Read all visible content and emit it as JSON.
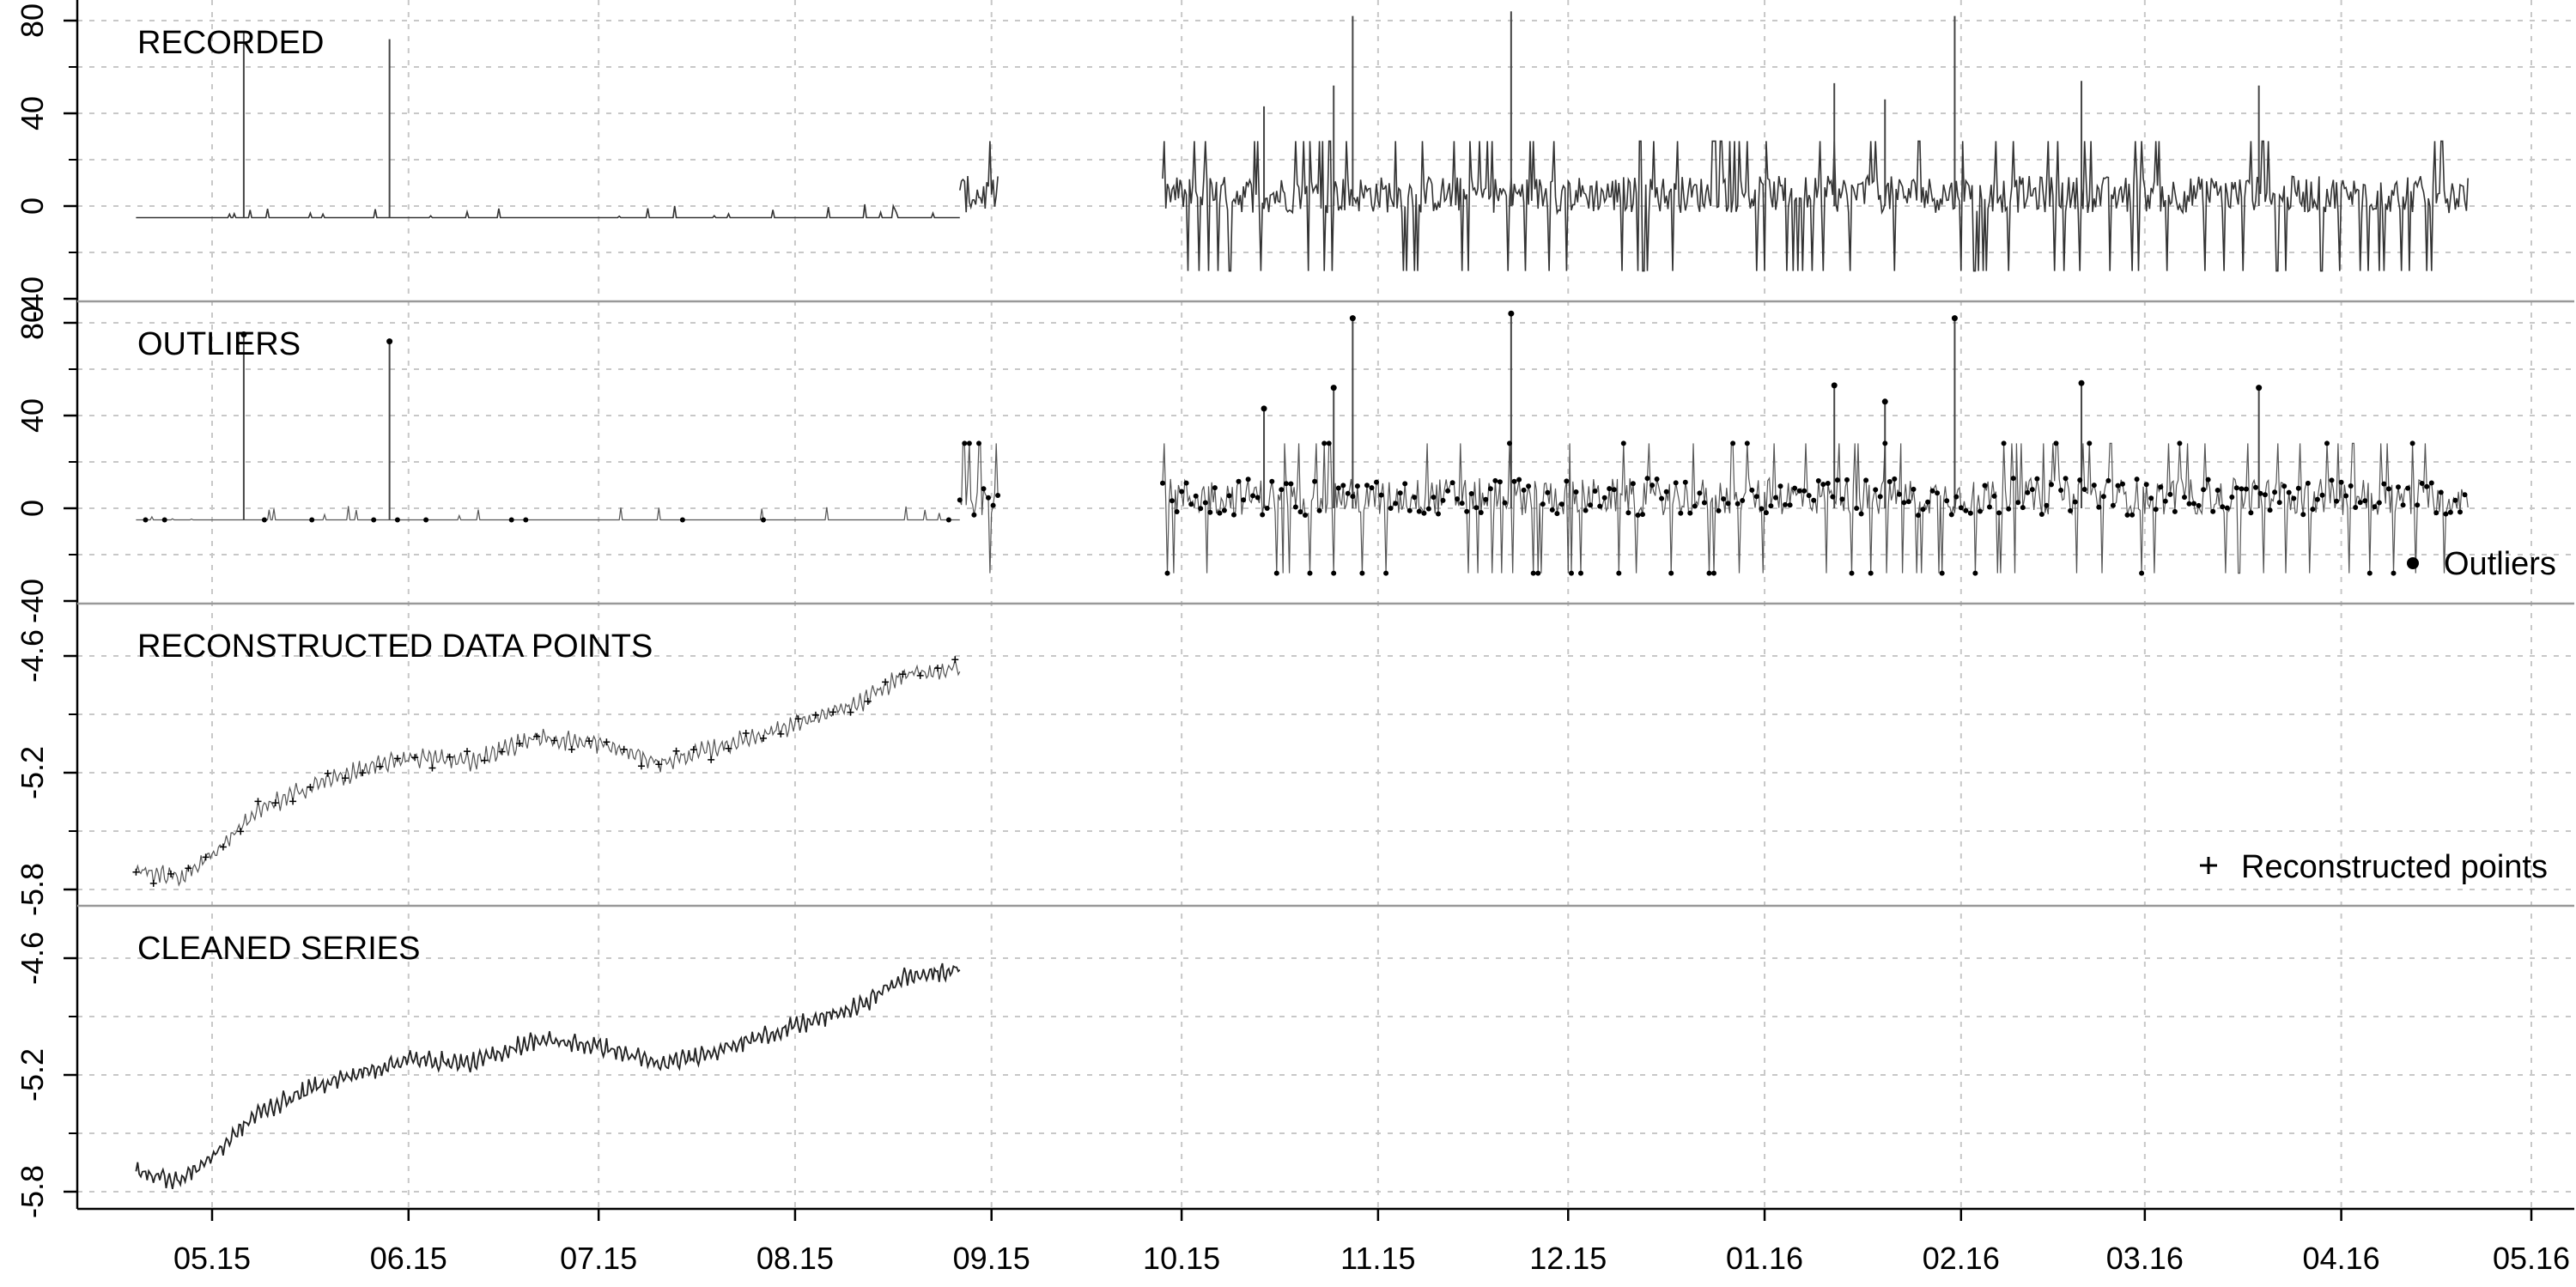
{
  "chart_data": {
    "type": "line",
    "grid": true,
    "panels": [
      {
        "title": "RECORDED",
        "yticks": [
          "80",
          "40",
          "0",
          "-40"
        ],
        "ylim": [
          -40,
          80
        ],
        "series_style": "line",
        "segments": [
          {
            "x": [
              "2015-05-03",
              "2015-09-10"
            ],
            "baseline": -5,
            "spikes": [
              {
                "x": "2015-05-20",
                "y": 75
              },
              {
                "x": "2015-06-12",
                "y": 72
              }
            ]
          },
          {
            "x": [
              "2015-09-10",
              "2015-09-16"
            ],
            "range": [
              -28,
              28
            ]
          },
          {
            "x": [
              "2015-10-12",
              "2016-05-05"
            ],
            "range": [
              -28,
              28
            ],
            "spikes": [
              {
                "x": "2015-10-28",
                "y": 43
              },
              {
                "x": "2015-11-08",
                "y": 52
              },
              {
                "x": "2015-11-11",
                "y": 82
              },
              {
                "x": "2015-12-06",
                "y": 84
              },
              {
                "x": "2016-01-26",
                "y": 53
              },
              {
                "x": "2016-02-03",
                "y": 46
              },
              {
                "x": "2016-02-14",
                "y": 82
              },
              {
                "x": "2016-03-05",
                "y": 54
              },
              {
                "x": "2016-04-02",
                "y": 52
              }
            ]
          }
        ]
      },
      {
        "title": "OUTLIERS",
        "yticks": [
          "80",
          "40",
          "0",
          "-40"
        ],
        "ylim": [
          -40,
          80
        ],
        "series_style": "line+points",
        "legend": {
          "label": "Outliers",
          "symbol": "filled-circle",
          "position": "bottom-right"
        },
        "segments": [
          {
            "x": [
              "2015-05-03",
              "2015-09-10"
            ],
            "baseline": -5,
            "spikes": [
              {
                "x": "2015-05-20",
                "y": 75
              },
              {
                "x": "2015-06-12",
                "y": 72
              }
            ]
          },
          {
            "x": [
              "2015-09-10",
              "2015-09-16"
            ],
            "range": [
              -28,
              28
            ]
          },
          {
            "x": [
              "2015-10-12",
              "2016-05-05"
            ],
            "range": [
              -28,
              28
            ],
            "spikes": [
              {
                "x": "2015-10-28",
                "y": 43
              },
              {
                "x": "2015-11-08",
                "y": 52
              },
              {
                "x": "2015-11-11",
                "y": 82
              },
              {
                "x": "2015-12-06",
                "y": 84
              },
              {
                "x": "2016-01-26",
                "y": 53
              },
              {
                "x": "2016-02-03",
                "y": 46
              },
              {
                "x": "2016-02-14",
                "y": 82
              },
              {
                "x": "2016-03-05",
                "y": 54
              },
              {
                "x": "2016-04-02",
                "y": 52
              }
            ]
          }
        ]
      },
      {
        "title": "RECONSTRUCTED DATA POINTS",
        "yticks": [
          "-4.6",
          "-5.2",
          "-5.8"
        ],
        "ylim": [
          -5.8,
          -4.55
        ],
        "series_style": "line+plus",
        "legend": {
          "label": "Reconstructed points",
          "symbol": "plus",
          "position": "bottom-right"
        },
        "trend": [
          {
            "x": "2015-05-03",
            "y": -5.7
          },
          {
            "x": "2015-05-10",
            "y": -5.74
          },
          {
            "x": "2015-05-15",
            "y": -5.62
          },
          {
            "x": "2015-05-22",
            "y": -5.4
          },
          {
            "x": "2015-06-01",
            "y": -5.25
          },
          {
            "x": "2015-06-15",
            "y": -5.12
          },
          {
            "x": "2015-06-25",
            "y": -5.14
          },
          {
            "x": "2015-07-05",
            "y": -5.02
          },
          {
            "x": "2015-07-15",
            "y": -5.05
          },
          {
            "x": "2015-07-25",
            "y": -5.15
          },
          {
            "x": "2015-08-05",
            "y": -5.05
          },
          {
            "x": "2015-08-15",
            "y": -4.95
          },
          {
            "x": "2015-08-25",
            "y": -4.85
          },
          {
            "x": "2015-09-01",
            "y": -4.7
          },
          {
            "x": "2015-09-10",
            "y": -4.66
          }
        ]
      },
      {
        "title": "CLEANED SERIES",
        "yticks": [
          "-4.6",
          "-5.2",
          "-5.8"
        ],
        "ylim": [
          -5.8,
          -4.55
        ],
        "series_style": "line",
        "trend": [
          {
            "x": "2015-05-03",
            "y": -5.7
          },
          {
            "x": "2015-05-10",
            "y": -5.74
          },
          {
            "x": "2015-05-15",
            "y": -5.62
          },
          {
            "x": "2015-05-22",
            "y": -5.4
          },
          {
            "x": "2015-06-01",
            "y": -5.25
          },
          {
            "x": "2015-06-15",
            "y": -5.12
          },
          {
            "x": "2015-06-25",
            "y": -5.14
          },
          {
            "x": "2015-07-05",
            "y": -5.02
          },
          {
            "x": "2015-07-15",
            "y": -5.05
          },
          {
            "x": "2015-07-25",
            "y": -5.15
          },
          {
            "x": "2015-08-05",
            "y": -5.05
          },
          {
            "x": "2015-08-15",
            "y": -4.95
          },
          {
            "x": "2015-08-25",
            "y": -4.85
          },
          {
            "x": "2015-09-01",
            "y": -4.7
          },
          {
            "x": "2015-09-10",
            "y": -4.66
          }
        ]
      }
    ],
    "xticks": [
      {
        "label": "05.15",
        "date": "2015-05-15"
      },
      {
        "label": "06.15",
        "date": "2015-06-15"
      },
      {
        "label": "07.15",
        "date": "2015-07-15"
      },
      {
        "label": "08.15",
        "date": "2015-08-15"
      },
      {
        "label": "09.15",
        "date": "2015-09-15"
      },
      {
        "label": "10.15",
        "date": "2015-10-15"
      },
      {
        "label": "11.15",
        "date": "2015-11-15"
      },
      {
        "label": "12.15",
        "date": "2015-12-15"
      },
      {
        "label": "01.16",
        "date": "2016-01-15"
      },
      {
        "label": "02.16",
        "date": "2016-02-15"
      },
      {
        "label": "03.16",
        "date": "2016-03-15"
      },
      {
        "label": "04.16",
        "date": "2016-04-15"
      },
      {
        "label": "05.16",
        "date": "2016-05-15"
      }
    ]
  }
}
